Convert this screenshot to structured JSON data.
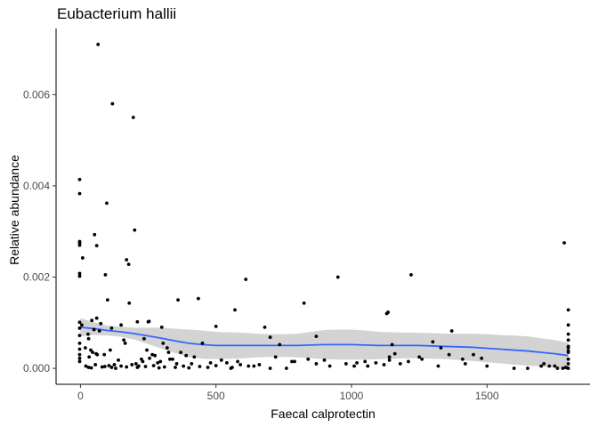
{
  "chart_data": {
    "type": "scatter",
    "title": "Eubacterium hallii",
    "xlabel": "Faecal calprotectin",
    "ylabel": "Relative abundance",
    "xlim": [
      -90,
      1880
    ],
    "ylim": [
      -0.00035,
      0.00745
    ],
    "xticks": [
      0,
      500,
      1000,
      1500
    ],
    "xtick_labels": [
      "0",
      "500",
      "1000",
      "1500"
    ],
    "yticks": [
      0,
      0.002,
      0.004,
      0.006
    ],
    "ytick_labels": [
      "0.000",
      "0.002",
      "0.004",
      "0.006"
    ],
    "grid": false,
    "points": {
      "name": "samples",
      "x": [
        65,
        118,
        195,
        200,
        -3,
        -3,
        97,
        52,
        60,
        8,
        -3,
        -3,
        170,
        178,
        253,
        -3,
        -3,
        -3,
        -3,
        -3,
        -3,
        -3,
        -3,
        5,
        30,
        50,
        100,
        180,
        300,
        500,
        250,
        165,
        115,
        70,
        28,
        18,
        -3,
        -3,
        -3,
        42,
        60,
        75,
        92,
        210,
        150,
        360,
        435,
        570,
        610,
        825,
        950,
        1220,
        1130,
        1135,
        1800,
        1800,
        1785,
        1800,
        1800,
        1800,
        1800,
        1800,
        1800,
        1800,
        1370,
        1410,
        1330,
        870,
        1150,
        1160,
        1050,
        1090,
        1140,
        1120,
        680,
        700,
        735,
        790,
        900,
        1010,
        1250,
        1300,
        1480,
        1500,
        1600,
        1700,
        1730,
        1760,
        1780,
        1790,
        1795,
        1800,
        1800,
        20,
        30,
        40,
        55,
        80,
        90,
        105,
        115,
        130,
        150,
        170,
        190,
        210,
        230,
        240,
        270,
        290,
        310,
        330,
        350,
        380,
        400,
        410,
        440,
        470,
        500,
        540,
        560,
        580,
        620,
        660,
        700,
        32,
        45,
        62,
        110,
        140,
        205,
        225,
        245,
        265,
        285,
        305,
        320,
        340,
        370,
        390,
        420,
        450,
        480,
        520,
        555,
        590,
        640,
        720,
        760,
        780,
        840,
        870,
        920,
        980,
        1020,
        1060,
        1140,
        1180,
        1210,
        1260,
        1320,
        1360,
        1420,
        1450,
        1650,
        1710,
        1750,
        38,
        58,
        88,
        125,
        160,
        215,
        235,
        255,
        275,
        295,
        325,
        355
      ],
      "y": [
        0.0071,
        0.0058,
        0.0055,
        0.00303,
        0.00414,
        0.00383,
        0.00362,
        0.00293,
        0.00269,
        0.00242,
        0.00278,
        0.00275,
        0.00238,
        0.00228,
        0.00103,
        0.0027,
        0.00208,
        0.00202,
        0.00101,
        0.00088,
        0.00072,
        0.00055,
        0.00042,
        0.00095,
        0.00065,
        0.00085,
        0.0015,
        0.00143,
        0.0009,
        0.00092,
        0.00102,
        0.00055,
        0.00088,
        0.00082,
        0.00075,
        0.00045,
        0.0003,
        0.00022,
        0.00015,
        0.00105,
        0.0011,
        0.00098,
        0.00205,
        0.00102,
        0.00095,
        0.0015,
        0.00153,
        0.00128,
        0.00195,
        0.00143,
        0.002,
        0.00205,
        0.0012,
        0.00123,
        0.00128,
        0.00095,
        0.00275,
        0.00075,
        0.00062,
        0.00048,
        0.00035,
        0.0002,
        0.0001,
        0.0,
        0.00082,
        0.0002,
        0.00045,
        0.0007,
        0.00052,
        0.00032,
        0.00015,
        0.00012,
        0.00018,
        8e-05,
        0.0009,
        0.00068,
        0.00052,
        0.00015,
        0.00018,
        5e-05,
        0.00025,
        0.00058,
        0.00022,
        5e-05,
        0.0,
        5e-05,
        5e-05,
        0.0,
        0.0,
        2e-05,
        1e-05,
        0.00045,
        0.00038,
        5e-05,
        2e-05,
        1e-05,
        8e-05,
        3e-05,
        4e-05,
        6e-05,
        2e-05,
        0.0,
        5e-05,
        3e-05,
        8e-05,
        2e-05,
        0.00015,
        4e-05,
        6e-05,
        1e-05,
        3e-05,
        0.0002,
        2e-05,
        5e-05,
        1e-05,
        0.0001,
        4e-05,
        2e-05,
        6e-05,
        0.00012,
        2e-05,
        0.00015,
        5e-05,
        8e-05,
        0.0,
        0.00025,
        0.00035,
        0.0003,
        0.0004,
        0.00018,
        0.0001,
        0.0002,
        0.0004,
        0.0003,
        0.00012,
        0.00055,
        0.00045,
        0.0002,
        0.00035,
        0.00028,
        0.00025,
        0.00055,
        0.00012,
        0.00018,
        0.0,
        8e-05,
        5e-05,
        0.00025,
        0.0,
        0.00015,
        0.0002,
        0.0001,
        5e-05,
        0.0001,
        0.00012,
        5e-05,
        0.00025,
        0.0001,
        0.00015,
        0.0002,
        5e-05,
        0.0003,
        0.0001,
        0.0003,
        0.0,
        0.0001,
        5e-05,
        0.0004,
        0.00032,
        0.0003,
        8e-05,
        0.00062,
        5e-05,
        0.00065,
        0.00022,
        0.00028,
        0.00015,
        0.00035,
        0.0001
      ]
    },
    "smooth": {
      "name": "loess fit",
      "color": "#3366ff",
      "band_color": "#d3d3d3",
      "x": [
        0,
        50,
        100,
        150,
        200,
        250,
        300,
        350,
        400,
        450,
        500,
        550,
        600,
        650,
        700,
        750,
        800,
        850,
        900,
        950,
        1000,
        1050,
        1100,
        1150,
        1200,
        1250,
        1300,
        1350,
        1400,
        1450,
        1500,
        1550,
        1600,
        1650,
        1700,
        1750,
        1800
      ],
      "y": [
        0.0009,
        0.00087,
        0.00083,
        0.0008,
        0.00076,
        0.00071,
        0.00066,
        0.0006,
        0.00055,
        0.00052,
        0.0005,
        0.0005,
        0.0005,
        0.0005,
        0.0005,
        0.0005,
        0.0005,
        0.00051,
        0.00052,
        0.00052,
        0.00052,
        0.00051,
        0.0005,
        0.0005,
        0.0005,
        0.0005,
        0.00049,
        0.00048,
        0.00047,
        0.00046,
        0.00044,
        0.00042,
        0.0004,
        0.00038,
        0.00035,
        0.00032,
        0.00028
      ],
      "lower": [
        0.0007,
        0.00073,
        0.00072,
        0.00069,
        0.00063,
        0.00053,
        0.00043,
        0.00033,
        0.00025,
        0.00021,
        0.0002,
        0.00021,
        0.00022,
        0.00024,
        0.00025,
        0.00025,
        0.00024,
        0.00022,
        0.0002,
        0.00019,
        0.00019,
        0.00019,
        0.0002,
        0.00021,
        0.00022,
        0.00022,
        0.00021,
        0.0002,
        0.00018,
        0.00016,
        0.00013,
        0.00011,
        8e-05,
        6e-05,
        4e-05,
        2e-05,
        0.0
      ],
      "upper": [
        0.0011,
        0.00101,
        0.00094,
        0.00091,
        0.00089,
        0.00089,
        0.00089,
        0.00087,
        0.00085,
        0.00083,
        0.0008,
        0.00079,
        0.00078,
        0.00076,
        0.00075,
        0.00075,
        0.00076,
        0.0008,
        0.00084,
        0.00085,
        0.00085,
        0.00083,
        0.0008,
        0.00079,
        0.00078,
        0.00078,
        0.00077,
        0.00076,
        0.00076,
        0.00076,
        0.00075,
        0.00073,
        0.00072,
        0.0007,
        0.00066,
        0.00062,
        0.00056
      ]
    }
  }
}
